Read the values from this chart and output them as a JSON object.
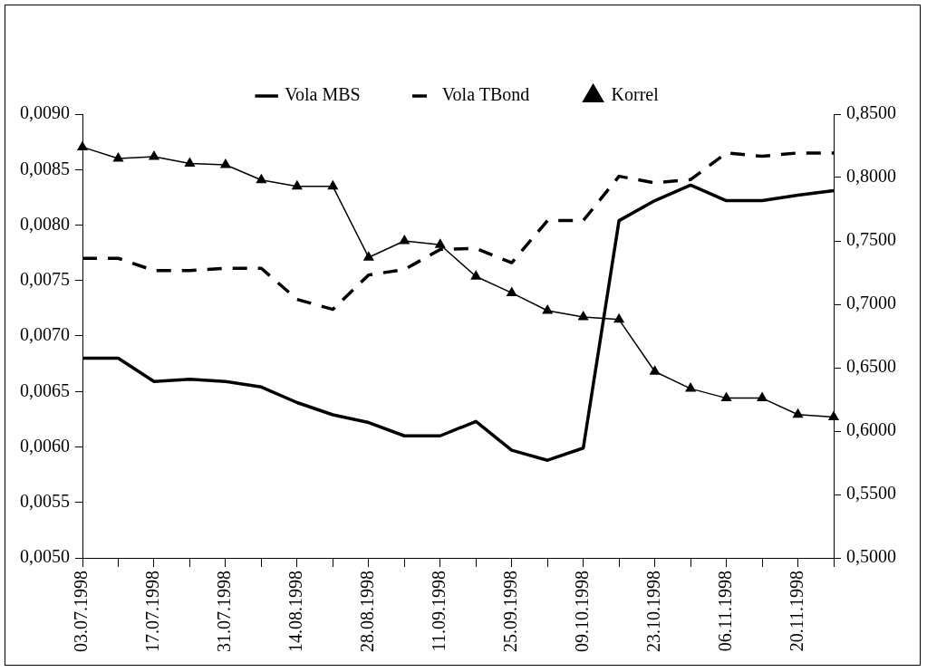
{
  "chart_data": {
    "type": "line",
    "categories": [
      "03.07.1998",
      null,
      "17.07.1998",
      null,
      "31.07.1998",
      null,
      "14.08.1998",
      null,
      "28.08.1998",
      null,
      "11.09.1998",
      null,
      "25.09.1998",
      null,
      "09.10.1998",
      null,
      "23.10.1998",
      null,
      "06.11.1998",
      null,
      "20.11.1998",
      null
    ],
    "series": [
      {
        "name": "Vola MBS",
        "color": "#000000",
        "line_style": "solid",
        "marker": "none",
        "values": [
          0.0068,
          0.0068,
          0.00659,
          0.00661,
          0.00659,
          0.00654,
          0.0064,
          0.00629,
          0.00622,
          0.0061,
          0.0061,
          0.00623,
          0.00597,
          0.00588,
          0.00599,
          0.00804,
          0.00822,
          0.00836,
          0.00822,
          0.00822,
          0.00827,
          0.00831
        ]
      },
      {
        "name": "Vola TBond",
        "color": "#000000",
        "line_style": "dashed",
        "marker": "none",
        "values": [
          0.0077,
          0.0077,
          0.00759,
          0.00759,
          0.00761,
          0.00761,
          0.00733,
          0.00724,
          0.00755,
          0.0076,
          0.00778,
          0.00779,
          0.00766,
          0.00804,
          0.00804,
          0.00844,
          0.00838,
          0.00841,
          0.00865,
          0.00862,
          0.00865,
          0.00865
        ]
      },
      {
        "name": "Korrel",
        "color": "#000000",
        "line_style": "solid",
        "marker": "triangle",
        "axis": "y2",
        "values": [
          0.824,
          0.815,
          0.8165,
          0.811,
          0.81,
          0.798,
          0.793,
          0.793,
          0.737,
          0.75,
          0.747,
          0.722,
          0.709,
          0.695,
          0.69,
          0.688,
          0.647,
          0.6335,
          0.626,
          0.626,
          0.613,
          0.611
        ]
      }
    ],
    "ylim": [
      0.005,
      0.009
    ],
    "yticks": [
      {
        "value": 0.005,
        "label": "0,0050"
      },
      {
        "value": 0.0055,
        "label": "0,0055"
      },
      {
        "value": 0.006,
        "label": "0,0060"
      },
      {
        "value": 0.0065,
        "label": "0,0065"
      },
      {
        "value": 0.007,
        "label": "0,0070"
      },
      {
        "value": 0.0075,
        "label": "0,0075"
      },
      {
        "value": 0.008,
        "label": "0,0080"
      },
      {
        "value": 0.0085,
        "label": "0,0085"
      },
      {
        "value": 0.009,
        "label": "0,0090"
      }
    ],
    "y2lim": [
      0.5,
      0.85
    ],
    "y2ticks": [
      {
        "value": 0.5,
        "label": "0,5000"
      },
      {
        "value": 0.55,
        "label": "0,5500"
      },
      {
        "value": 0.6,
        "label": "0,6000"
      },
      {
        "value": 0.65,
        "label": "0,6500"
      },
      {
        "value": 0.7,
        "label": "0,7000"
      },
      {
        "value": 0.75,
        "label": "0,7500"
      },
      {
        "value": 0.8,
        "label": "0,8000"
      },
      {
        "value": 0.85,
        "label": "0,8500"
      }
    ],
    "grid": false,
    "legend": "top"
  }
}
